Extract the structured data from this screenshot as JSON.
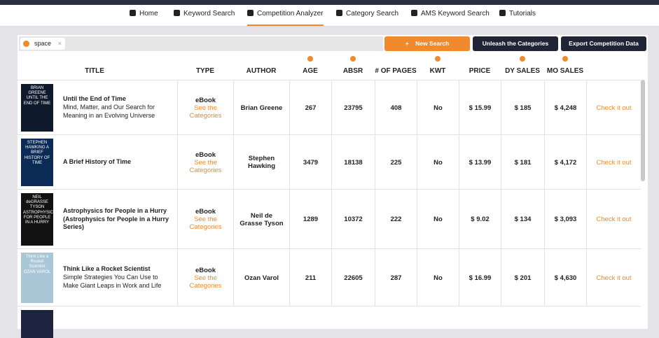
{
  "nav": {
    "items": [
      "Home",
      "Keyword Search",
      "Competition Analyzer",
      "Category Search",
      "AMS Keyword Search",
      "Tutorials"
    ],
    "active": 2
  },
  "search": {
    "tag": "space"
  },
  "buttons": {
    "new_search": "New Search",
    "unleash": "Unleash the Categories",
    "export": "Export Competition Data"
  },
  "table": {
    "headers": [
      "TITLE",
      "TYPE",
      "AUTHOR",
      "AGE",
      "ABSR",
      "# OF PAGES",
      "KWT",
      "PRICE",
      "DY SALES",
      "MO SALES"
    ],
    "rows": [
      {
        "cover": "BRIAN GREENE UNTIL THE END OF TIME",
        "title": "Until the End of Time",
        "subtitle": "Mind, Matter, and Our Search for Meaning in an Evolving Universe",
        "type": "eBook",
        "link": "See the Categories",
        "author": "Brian Greene",
        "age": "267",
        "absr": "23795",
        "pages": "408",
        "kwt": "No",
        "price": "$ 15.99",
        "dy_sales": "$ 185",
        "mo_sales": "$ 4,248",
        "action": "Check it out"
      },
      {
        "cover": "STEPHEN HAWKING A BRIEF HISTORY OF TIME",
        "title": "A Brief History of Time",
        "subtitle": "",
        "type": "eBook",
        "link": "See the Categories",
        "author": "Stephen Hawking",
        "age": "3479",
        "absr": "18138",
        "pages": "225",
        "kwt": "No",
        "price": "$ 13.99",
        "dy_sales": "$ 181",
        "mo_sales": "$ 4,172",
        "action": "Check it out"
      },
      {
        "cover": "NEIL deGRASSE TYSON ASTROPHYSICS FOR PEOPLE IN A HURRY",
        "title": "Astrophysics for People in a Hurry (Astrophysics for People in a Hurry Series)",
        "subtitle": "",
        "type": "eBook",
        "link": "See the Categories",
        "author": "Neil de Grasse Tyson",
        "age": "1289",
        "absr": "10372",
        "pages": "222",
        "kwt": "No",
        "price": "$ 9.02",
        "dy_sales": "$ 134",
        "mo_sales": "$ 3,093",
        "action": "Check it out"
      },
      {
        "cover": "Think Like a Rocket Scientist OZAN VAROL",
        "title": "Think Like a Rocket Scientist",
        "subtitle": "Simple Strategies You Can Use to Make Giant Leaps in Work and Life",
        "type": "eBook",
        "link": "See the Categories",
        "author": "Ozan Varol",
        "age": "211",
        "absr": "22605",
        "pages": "287",
        "kwt": "No",
        "price": "$ 16.99",
        "dy_sales": "$ 201",
        "mo_sales": "$ 4,630",
        "action": "Check it out"
      }
    ]
  }
}
